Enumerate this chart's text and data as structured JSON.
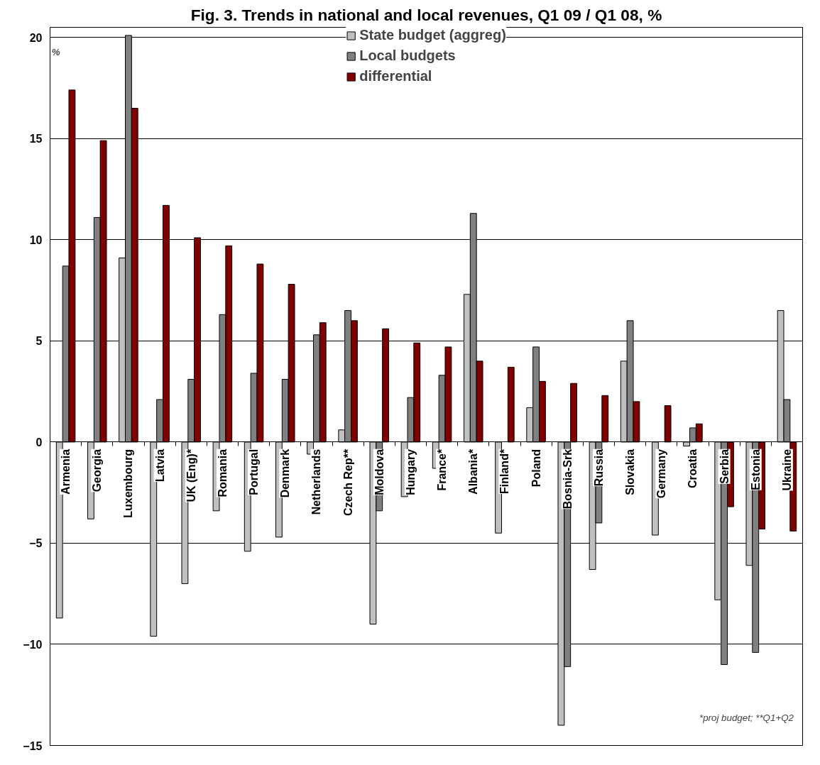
{
  "chart_data": {
    "type": "bar",
    "title": "Fig. 3. Trends in national and local revenues, Q1 09 / Q1 08, %",
    "ylabel": "%",
    "categories": [
      "Armenia",
      "Georgia",
      "Luxembourg",
      "Latvia",
      "UK (Eng)*",
      "Romania",
      "Portugal",
      "Denmark",
      "Netherlands",
      "Czech Rep**",
      "Moldova",
      "Hungary",
      "France*",
      "Albania*",
      "Finland*",
      "Poland",
      "Bosnia-Srk",
      "Russia",
      "Slovakia",
      "Germany",
      "Croatia",
      "Serbia",
      "Estonia",
      "Ukraine"
    ],
    "series": [
      {
        "name": "State budget (aggreg)",
        "color": "#c0c0c0",
        "values": [
          -8.7,
          -3.8,
          9.1,
          -9.6,
          -7.0,
          -3.4,
          -5.4,
          -4.7,
          -0.6,
          0.6,
          -9.0,
          -2.7,
          -1.3,
          7.3,
          -4.5,
          1.7,
          -14.0,
          -6.3,
          4.0,
          -4.6,
          -0.2,
          -7.8,
          -6.1,
          6.5
        ]
      },
      {
        "name": "Local budgets",
        "color": "#808080",
        "values": [
          8.7,
          11.1,
          20.1,
          2.1,
          3.1,
          6.3,
          3.4,
          3.1,
          5.3,
          6.5,
          -3.4,
          2.2,
          3.3,
          11.3,
          null,
          4.7,
          -11.1,
          -4.0,
          6.0,
          null,
          0.7,
          -11.0,
          -10.4,
          2.1
        ]
      },
      {
        "name": "differential",
        "color": "#800000",
        "values": [
          17.4,
          14.9,
          16.5,
          11.7,
          10.1,
          9.7,
          8.8,
          7.8,
          5.9,
          6.0,
          5.6,
          4.9,
          4.7,
          4.0,
          3.7,
          3.0,
          2.9,
          2.3,
          2.0,
          1.8,
          0.9,
          -3.2,
          -4.3,
          -4.4
        ]
      }
    ],
    "ylim": [
      -15,
      20.5
    ],
    "yticks": [
      -15,
      -10,
      -5,
      0,
      5,
      10,
      15,
      20
    ],
    "grid": "y",
    "legend": "top",
    "annotations": [
      "*proj budget;  **Q1+Q2"
    ]
  }
}
